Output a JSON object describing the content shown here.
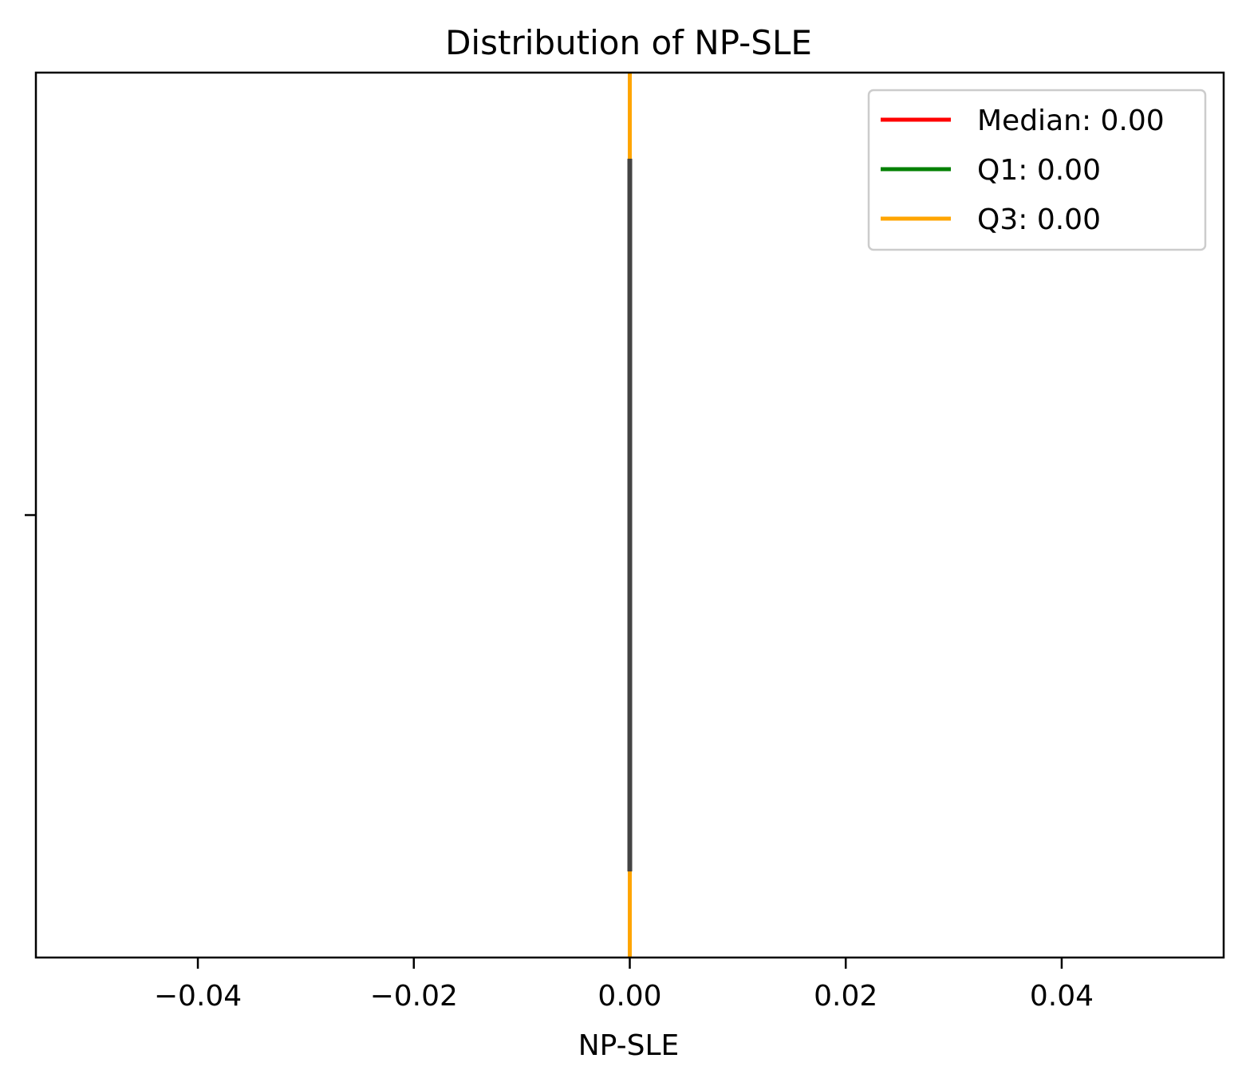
{
  "chart_data": {
    "type": "box",
    "title": "Distribution of NP-SLE",
    "xlabel": "NP-SLE",
    "ylabel": "",
    "xlim": [
      -0.055,
      0.055
    ],
    "ylim": [
      -0.5,
      0.5
    ],
    "x_ticks": [
      -0.04,
      -0.02,
      0.0,
      0.02,
      0.04
    ],
    "x_tick_labels": [
      "−0.04",
      "−0.02",
      "0.00",
      "0.02",
      "0.04"
    ],
    "y_ticks": [
      0
    ],
    "y_tick_labels": [
      ""
    ],
    "box": {
      "min": 0.0,
      "q1": 0.0,
      "median": 0.0,
      "q3": 0.0,
      "max": 0.0,
      "box_half_width": 0.4,
      "color": "#444444"
    },
    "reference_lines": [
      {
        "name": "Median: 0.00",
        "value": 0.0,
        "color": "#ff0000"
      },
      {
        "name": "Q1: 0.00",
        "value": 0.0,
        "color": "#008000"
      },
      {
        "name": "Q3: 0.00",
        "value": 0.0,
        "color": "#ffa500"
      }
    ],
    "legend": {
      "placement": "top-right",
      "entries": [
        "Median: 0.00",
        "Q1: 0.00",
        "Q3: 0.00"
      ]
    },
    "grid": false
  }
}
